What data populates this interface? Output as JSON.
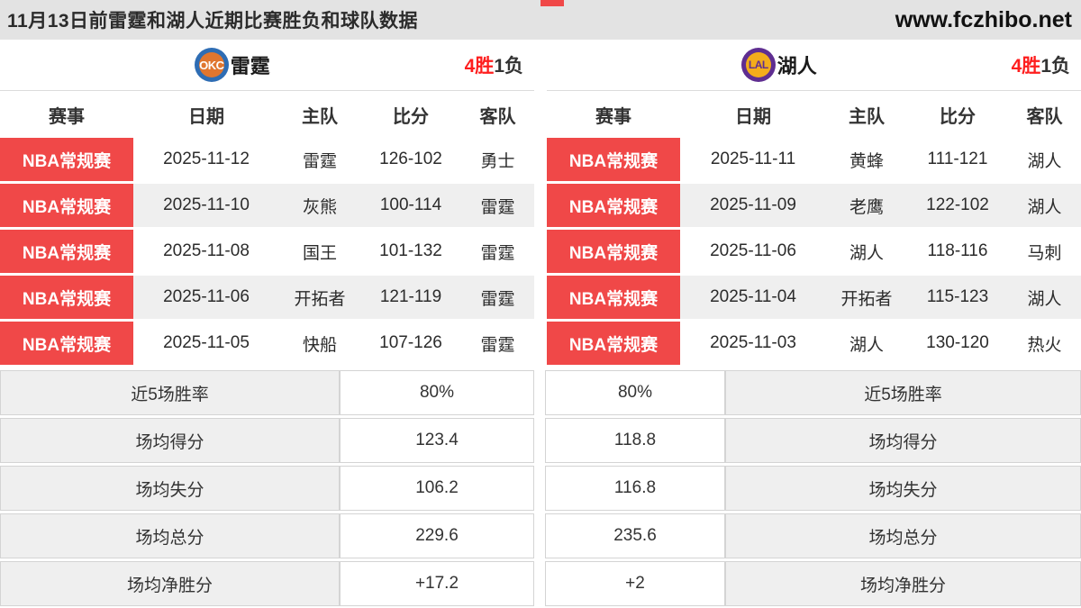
{
  "header": {
    "title": "11月13日前雷霆和湖人近期比赛胜负和球队数据",
    "site": "www.fczhibo.net"
  },
  "columns": [
    "赛事",
    "日期",
    "主队",
    "比分",
    "客队"
  ],
  "stats_labels": [
    "近5场胜率",
    "场均得分",
    "场均失分",
    "场均总分",
    "场均净胜分"
  ],
  "teams": [
    {
      "name": "雷霆",
      "logo_text": "OKC",
      "wins": "4胜",
      "losses": "1负",
      "rows": [
        {
          "league": "NBA常规赛",
          "date": "2025-11-12",
          "home": "雷霆",
          "score": "126-102",
          "away": "勇士"
        },
        {
          "league": "NBA常规赛",
          "date": "2025-11-10",
          "home": "灰熊",
          "score": "100-114",
          "away": "雷霆"
        },
        {
          "league": "NBA常规赛",
          "date": "2025-11-08",
          "home": "国王",
          "score": "101-132",
          "away": "雷霆"
        },
        {
          "league": "NBA常规赛",
          "date": "2025-11-06",
          "home": "开拓者",
          "score": "121-119",
          "away": "雷霆"
        },
        {
          "league": "NBA常规赛",
          "date": "2025-11-05",
          "home": "快船",
          "score": "107-126",
          "away": "雷霆"
        }
      ],
      "stats": [
        "80%",
        "123.4",
        "106.2",
        "229.6",
        "+17.2"
      ]
    },
    {
      "name": "湖人",
      "logo_text": "LAL",
      "wins": "4胜",
      "losses": "1负",
      "rows": [
        {
          "league": "NBA常规赛",
          "date": "2025-11-11",
          "home": "黄蜂",
          "score": "111-121",
          "away": "湖人"
        },
        {
          "league": "NBA常规赛",
          "date": "2025-11-09",
          "home": "老鹰",
          "score": "122-102",
          "away": "湖人"
        },
        {
          "league": "NBA常规赛",
          "date": "2025-11-06",
          "home": "湖人",
          "score": "118-116",
          "away": "马刺"
        },
        {
          "league": "NBA常规赛",
          "date": "2025-11-04",
          "home": "开拓者",
          "score": "115-123",
          "away": "湖人"
        },
        {
          "league": "NBA常规赛",
          "date": "2025-11-03",
          "home": "湖人",
          "score": "130-120",
          "away": "热火"
        }
      ],
      "stats": [
        "80%",
        "118.8",
        "116.8",
        "235.6",
        "+2"
      ]
    }
  ],
  "colors": {
    "badge_red": "#f04848",
    "win_red": "#fe1e1e",
    "titlebar_grey": "#e3e3e3",
    "row_alt_grey": "#efefef",
    "okc_blue": "#2e6db4",
    "okc_orange": "#e0762f",
    "lal_purple": "#5f2e91",
    "lal_gold": "#f3ac1b"
  }
}
